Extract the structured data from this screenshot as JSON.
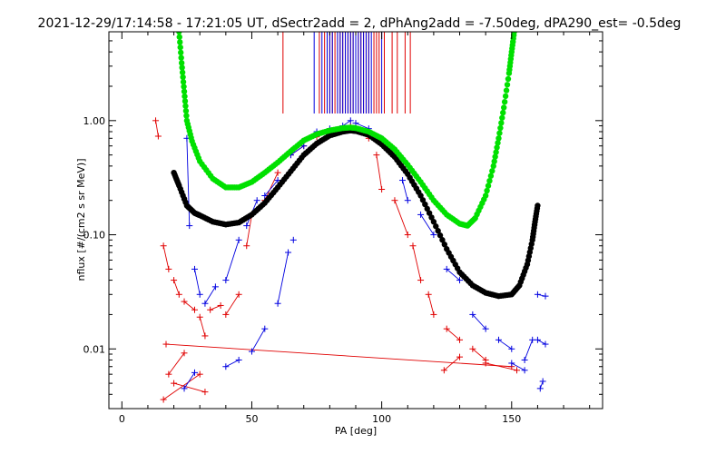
{
  "chart_data": {
    "type": "scatter",
    "title": "2021-12-29/17:14:58 - 17:21:05 UT, dSectr2add = 2, dPhAng2add = -7.50deg, dPA290_est=  -0.5deg",
    "xlabel": "PA [deg]",
    "ylabel": "nflux [#/(cm2 s sr MeV)]",
    "xlim": [
      -5,
      185
    ],
    "ylim": [
      0.003,
      6.0
    ],
    "yscale": "log",
    "x_ticks": [
      0,
      50,
      100,
      150
    ],
    "x_tick_labels": [
      "0",
      "50",
      "100",
      "150"
    ],
    "y_ticks": [
      0.01,
      0.1,
      1.0
    ],
    "y_tick_labels": [
      "0.01",
      "0.10",
      "1.00"
    ],
    "grid": false,
    "colors": {
      "red": "#e00000",
      "blue": "#0000e0",
      "black": "#000000",
      "green": "#00e000"
    },
    "top_markers": {
      "red": [
        62,
        76,
        78,
        80,
        81,
        82,
        83,
        84,
        85,
        86,
        87,
        88,
        89,
        90,
        91,
        92,
        93,
        94,
        95,
        97,
        98,
        99,
        101,
        104,
        106,
        109,
        111
      ],
      "blue": [
        74,
        77,
        79,
        80,
        81,
        83,
        84,
        85,
        86,
        87,
        88,
        89,
        90,
        91,
        92,
        93,
        94,
        95,
        96,
        100
      ]
    },
    "series": [
      {
        "color": "red",
        "marker": "plus",
        "points": [
          [
            13,
            1.0
          ],
          [
            14,
            0.73
          ],
          [
            16,
            0.08
          ],
          [
            18,
            0.05
          ],
          [
            20,
            0.04
          ],
          [
            22,
            0.03
          ],
          [
            24,
            0.026
          ],
          [
            28,
            0.022
          ],
          [
            30,
            0.019
          ],
          [
            32,
            0.013
          ],
          [
            34,
            0.022
          ],
          [
            38,
            0.024
          ],
          [
            40,
            0.02
          ],
          [
            45,
            0.03
          ],
          [
            48,
            0.08
          ],
          [
            50,
            0.15
          ],
          [
            55,
            0.2
          ],
          [
            60,
            0.35
          ],
          [
            65,
            0.5
          ],
          [
            70,
            0.6
          ],
          [
            75,
            0.72
          ],
          [
            80,
            0.8
          ],
          [
            85,
            0.85
          ],
          [
            88,
            0.9
          ],
          [
            90,
            0.88
          ],
          [
            95,
            0.7
          ],
          [
            98,
            0.5
          ],
          [
            100,
            0.25
          ],
          [
            105,
            0.2
          ],
          [
            110,
            0.1
          ],
          [
            112,
            0.08
          ],
          [
            115,
            0.04
          ],
          [
            118,
            0.03
          ],
          [
            120,
            0.02
          ],
          [
            125,
            0.015
          ],
          [
            130,
            0.012
          ],
          [
            135,
            0.01
          ],
          [
            140,
            0.008
          ],
          [
            150,
            0.007
          ],
          [
            17,
            0.011
          ],
          [
            18,
            0.006
          ],
          [
            24,
            0.0092
          ],
          [
            30,
            0.006
          ],
          [
            16,
            0.0036
          ],
          [
            20,
            0.005
          ],
          [
            32,
            0.0042
          ],
          [
            124,
            0.0065
          ],
          [
            130,
            0.0085
          ],
          [
            140,
            0.0075
          ],
          [
            152,
            0.0065
          ]
        ]
      },
      {
        "color": "blue",
        "marker": "plus",
        "points": [
          [
            25,
            0.7
          ],
          [
            26,
            0.12
          ],
          [
            28,
            0.05
          ],
          [
            30,
            0.03
          ],
          [
            32,
            0.025
          ],
          [
            36,
            0.035
          ],
          [
            40,
            0.04
          ],
          [
            45,
            0.09
          ],
          [
            48,
            0.12
          ],
          [
            52,
            0.2
          ],
          [
            55,
            0.22
          ],
          [
            60,
            0.3
          ],
          [
            65,
            0.5
          ],
          [
            70,
            0.6
          ],
          [
            75,
            0.8
          ],
          [
            80,
            0.85
          ],
          [
            85,
            0.9
          ],
          [
            88,
            1.0
          ],
          [
            90,
            0.95
          ],
          [
            95,
            0.85
          ],
          [
            100,
            0.7
          ],
          [
            105,
            0.5
          ],
          [
            108,
            0.3
          ],
          [
            110,
            0.2
          ],
          [
            115,
            0.15
          ],
          [
            120,
            0.1
          ],
          [
            125,
            0.05
          ],
          [
            130,
            0.04
          ],
          [
            135,
            0.02
          ],
          [
            140,
            0.015
          ],
          [
            145,
            0.012
          ],
          [
            150,
            0.01
          ],
          [
            155,
            0.008
          ],
          [
            158,
            0.012
          ],
          [
            160,
            0.03
          ],
          [
            163,
            0.029
          ],
          [
            161,
            0.0045
          ],
          [
            162,
            0.0052
          ],
          [
            160,
            0.012
          ],
          [
            163,
            0.011
          ],
          [
            150,
            0.0075
          ],
          [
            155,
            0.0065
          ],
          [
            24,
            0.0045
          ],
          [
            28,
            0.0062
          ],
          [
            40,
            0.007
          ],
          [
            45,
            0.008
          ],
          [
            50,
            0.0095
          ],
          [
            55,
            0.015
          ],
          [
            60,
            0.025
          ],
          [
            64,
            0.07
          ],
          [
            66,
            0.09
          ]
        ]
      },
      {
        "color": "black",
        "marker": "dot",
        "curve": [
          [
            20,
            0.35
          ],
          [
            22,
            0.27
          ],
          [
            25,
            0.18
          ],
          [
            28,
            0.155
          ],
          [
            30,
            0.148
          ],
          [
            35,
            0.13
          ],
          [
            40,
            0.123
          ],
          [
            45,
            0.128
          ],
          [
            50,
            0.15
          ],
          [
            55,
            0.19
          ],
          [
            60,
            0.26
          ],
          [
            65,
            0.36
          ],
          [
            70,
            0.5
          ],
          [
            75,
            0.63
          ],
          [
            80,
            0.74
          ],
          [
            85,
            0.8
          ],
          [
            88,
            0.82
          ],
          [
            90,
            0.81
          ],
          [
            95,
            0.75
          ],
          [
            100,
            0.62
          ],
          [
            105,
            0.48
          ],
          [
            110,
            0.34
          ],
          [
            115,
            0.22
          ],
          [
            120,
            0.13
          ],
          [
            125,
            0.075
          ],
          [
            130,
            0.047
          ],
          [
            135,
            0.036
          ],
          [
            140,
            0.031
          ],
          [
            145,
            0.029
          ],
          [
            150,
            0.03
          ],
          [
            153,
            0.036
          ],
          [
            156,
            0.055
          ],
          [
            158,
            0.09
          ],
          [
            159,
            0.13
          ],
          [
            160,
            0.18
          ]
        ]
      },
      {
        "color": "green",
        "marker": "dot",
        "curve": [
          [
            22,
            6.0
          ],
          [
            23,
            3.2
          ],
          [
            24,
            1.8
          ],
          [
            25,
            1.0
          ],
          [
            27,
            0.66
          ],
          [
            30,
            0.44
          ],
          [
            35,
            0.31
          ],
          [
            40,
            0.26
          ],
          [
            45,
            0.26
          ],
          [
            50,
            0.29
          ],
          [
            55,
            0.35
          ],
          [
            60,
            0.43
          ],
          [
            65,
            0.54
          ],
          [
            70,
            0.67
          ],
          [
            75,
            0.76
          ],
          [
            80,
            0.82
          ],
          [
            85,
            0.86
          ],
          [
            88,
            0.87
          ],
          [
            90,
            0.86
          ],
          [
            95,
            0.8
          ],
          [
            100,
            0.7
          ],
          [
            105,
            0.56
          ],
          [
            110,
            0.41
          ],
          [
            115,
            0.29
          ],
          [
            120,
            0.2
          ],
          [
            125,
            0.15
          ],
          [
            130,
            0.125
          ],
          [
            133,
            0.12
          ],
          [
            136,
            0.14
          ],
          [
            140,
            0.22
          ],
          [
            143,
            0.4
          ],
          [
            145,
            0.7
          ],
          [
            147,
            1.3
          ],
          [
            149,
            2.6
          ],
          [
            150,
            4.0
          ],
          [
            151,
            6.0
          ]
        ]
      }
    ]
  }
}
